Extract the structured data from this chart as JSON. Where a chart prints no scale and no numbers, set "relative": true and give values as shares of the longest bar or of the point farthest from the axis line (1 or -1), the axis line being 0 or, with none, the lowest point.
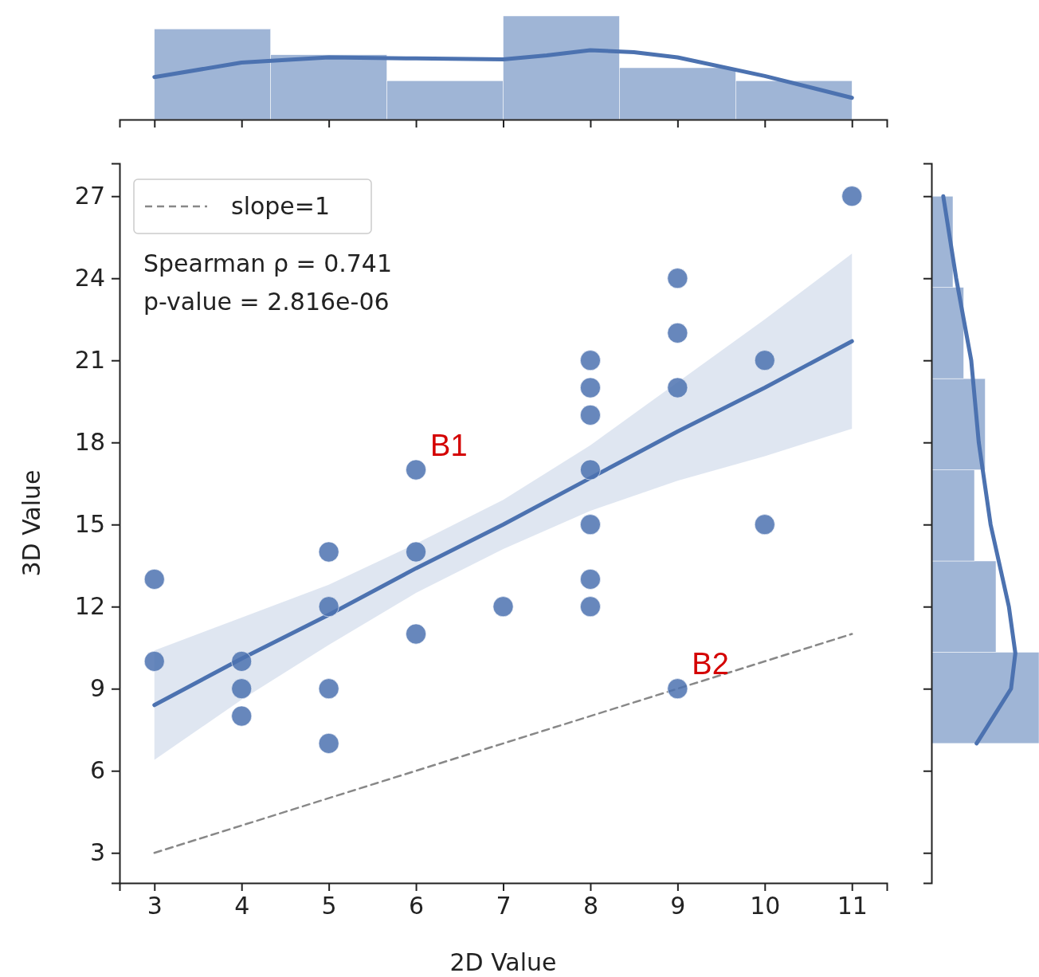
{
  "chart_data": [
    {
      "type": "histogram",
      "relative": true,
      "xlim": [
        2.6,
        11.4
      ],
      "xticks": [
        3,
        4,
        5,
        6,
        7,
        8,
        9,
        10,
        11
      ],
      "tick_labels": false,
      "grid": false,
      "legend": false,
      "series": [
        {
          "color": "#9fb5d6",
          "bins": [
            3,
            4.333,
            5.667,
            7,
            8.333,
            9.667,
            11
          ],
          "values": [
            0.875,
            0.625,
            0.375,
            1,
            0.5,
            0.375
          ]
        },
        {
          "type": "line",
          "color": "#4c72b0",
          "x": [
            3,
            4,
            5,
            6,
            7,
            7.5,
            8,
            8.5,
            9,
            10,
            11
          ],
          "values": [
            0.41,
            0.55,
            0.6,
            0.59,
            0.58,
            0.62,
            0.67,
            0.65,
            0.6,
            0.42,
            0.21
          ]
        }
      ]
    },
    {
      "type": "scatter",
      "xlabel": "2D Value",
      "ylabel": "3D Value",
      "xlim": [
        2.6,
        11.4
      ],
      "ylim": [
        1.9,
        28.2
      ],
      "xticks": [
        3,
        4,
        5,
        6,
        7,
        8,
        9,
        10,
        11
      ],
      "yticks": [
        3,
        6,
        9,
        12,
        15,
        18,
        21,
        24,
        27
      ],
      "grid": false,
      "legend": "top left",
      "marker": "circle",
      "annotations": [
        "Spearman ρ = 0.741",
        "p-value = 2.816e-06",
        {
          "text": "B1",
          "x": 6,
          "y": 17
        },
        {
          "text": "B2",
          "x": 9,
          "y": 9
        }
      ],
      "series": [
        {
          "type": "line",
          "color": "#4c72b0",
          "marker": "none",
          "x": [
            3,
            4,
            5,
            6,
            7,
            8,
            9,
            10,
            11
          ],
          "values": [
            8.4,
            10.1,
            11.7,
            13.4,
            15.0,
            16.7,
            18.4,
            20.0,
            21.7
          ],
          "lower": [
            6.4,
            8.6,
            10.6,
            12.5,
            14.1,
            15.5,
            16.6,
            17.5,
            18.5
          ],
          "upper": [
            10.4,
            11.6,
            12.8,
            14.3,
            15.9,
            17.9,
            20.2,
            22.5,
            24.9
          ]
        },
        {
          "type": "line",
          "name": "slope=1",
          "color": "#888888",
          "line_style": "dashed",
          "marker": "none",
          "x": [
            3,
            11
          ],
          "values": [
            3,
            11
          ]
        },
        {
          "color": "#4c72b0",
          "x": [
            3,
            3,
            4,
            4,
            4,
            5,
            5,
            5,
            5,
            6,
            6,
            6,
            7,
            8,
            8,
            8,
            8,
            8,
            8,
            8,
            9,
            9,
            9,
            9,
            10,
            10,
            11
          ],
          "values": [
            13,
            10,
            10,
            9,
            8,
            14,
            12,
            9,
            7,
            17,
            14,
            11,
            12,
            21,
            20,
            19,
            17,
            15,
            13,
            12,
            24,
            22,
            20,
            9,
            21,
            15,
            27
          ]
        }
      ]
    },
    {
      "type": "histogram",
      "orientation": "horizontal",
      "relative": true,
      "ylim": [
        1.9,
        28.2
      ],
      "yticks": [
        3,
        6,
        9,
        12,
        15,
        18,
        21,
        24,
        27
      ],
      "tick_labels": false,
      "grid": false,
      "legend": false,
      "series": [
        {
          "color": "#9fb5d6",
          "bins": [
            7,
            10.333,
            13.667,
            17,
            20.333,
            23.667,
            27
          ],
          "values": [
            1,
            0.6,
            0.4,
            0.5,
            0.3,
            0.2
          ]
        },
        {
          "type": "line",
          "color": "#4c72b0",
          "x": [
            7,
            9,
            10.3,
            12,
            15,
            18,
            21,
            24,
            27
          ],
          "values": [
            0.42,
            0.74,
            0.78,
            0.72,
            0.55,
            0.44,
            0.37,
            0.23,
            0.11
          ]
        }
      ]
    }
  ]
}
